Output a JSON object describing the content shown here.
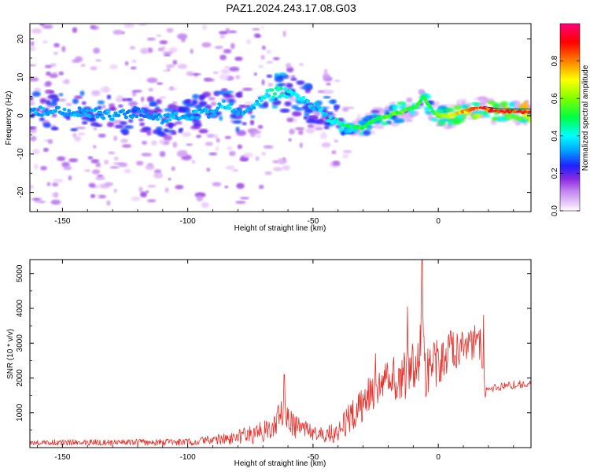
{
  "figure": {
    "title": "PAZ1.2024.243.17.08.G03"
  },
  "chart_data": [
    {
      "type": "heatmap",
      "name": "spectrogram",
      "xlabel": "Height of straight line (km)",
      "ylabel": "Frequency (Hz)",
      "xlim": [
        -163,
        37
      ],
      "ylim": [
        -25,
        24
      ],
      "xticks": [
        -150,
        -100,
        -50,
        0
      ],
      "yticks": [
        -20,
        -10,
        0,
        10,
        20
      ],
      "colorbar": {
        "label": "Normalized spectral amplitude",
        "range": [
          0,
          1
        ],
        "ticks": [
          0.0,
          0.2,
          0.4,
          0.6,
          0.8
        ]
      },
      "ridge_frequency": {
        "x": [
          -163,
          -150,
          -140,
          -130,
          -120,
          -110,
          -100,
          -90,
          -85,
          -80,
          -75,
          -70,
          -65,
          -60,
          -55,
          -50,
          -45,
          -40,
          -35,
          -30,
          -25,
          -20,
          -15,
          -10,
          -8,
          -6,
          -4,
          -2,
          0,
          5,
          10,
          15,
          20,
          25,
          30,
          37
        ],
        "freq": [
          1,
          1.5,
          1,
          0,
          1,
          -1,
          0,
          1,
          3,
          1,
          2,
          5,
          6,
          6,
          4,
          3,
          0,
          -2,
          -3,
          -3,
          -1,
          0,
          1,
          2,
          3,
          5,
          3,
          1,
          0,
          0,
          1,
          2,
          1.5,
          1,
          1,
          1
        ],
        "amplitude": [
          0.35,
          0.35,
          0.35,
          0.35,
          0.3,
          0.35,
          0.35,
          0.35,
          0.4,
          0.35,
          0.35,
          0.4,
          0.45,
          0.45,
          0.4,
          0.35,
          0.4,
          0.45,
          0.5,
          0.55,
          0.5,
          0.55,
          0.6,
          0.55,
          0.55,
          0.55,
          0.55,
          0.5,
          0.6,
          0.7,
          0.8,
          0.85,
          0.9,
          0.92,
          0.92,
          0.92
        ]
      }
    },
    {
      "type": "line",
      "name": "snr",
      "xlabel": "Height of straight line (km)",
      "ylabel": "SNR (10 * v/v)",
      "xlim": [
        -163,
        37
      ],
      "ylim": [
        0,
        5400
      ],
      "xticks": [
        -150,
        -100,
        -50,
        0
      ],
      "yticks": [
        1000,
        2000,
        3000,
        4000,
        5000
      ],
      "color": "#e8302a",
      "envelope": {
        "x": [
          -163,
          -150,
          -120,
          -100,
          -90,
          -80,
          -75,
          -70,
          -66,
          -64,
          -62,
          -60,
          -58,
          -55,
          -52,
          -50,
          -48,
          -45,
          -42,
          -40,
          -38,
          -35,
          -32,
          -30,
          -28,
          -25,
          -22,
          -20,
          -18,
          -15,
          -13,
          -12,
          -11,
          -10,
          -8,
          -7,
          -6.5,
          -6,
          -5,
          -4,
          -2,
          0,
          2,
          4,
          6,
          8,
          10,
          12,
          14,
          17,
          18,
          19,
          20,
          25,
          30,
          37
        ],
        "y": [
          150,
          150,
          150,
          160,
          220,
          300,
          380,
          450,
          650,
          850,
          1000,
          900,
          700,
          500,
          450,
          420,
          450,
          400,
          420,
          500,
          650,
          900,
          1050,
          1300,
          1500,
          1700,
          1800,
          1900,
          2000,
          2000,
          2100,
          2200,
          2600,
          2000,
          2400,
          3000,
          5000,
          2500,
          2000,
          2300,
          2400,
          2500,
          2600,
          2700,
          2700,
          2800,
          2900,
          3000,
          3000,
          3100,
          1450,
          1600,
          1700,
          1750,
          1800,
          1850
        ]
      },
      "noise": [
        [
          -163,
          80
        ],
        [
          -100,
          100
        ],
        [
          -80,
          200
        ],
        [
          -65,
          420
        ],
        [
          -58,
          380
        ],
        [
          -50,
          230
        ],
        [
          -45,
          260
        ],
        [
          -38,
          380
        ],
        [
          -32,
          500
        ],
        [
          -25,
          600
        ],
        [
          -15,
          650
        ],
        [
          -10,
          800
        ],
        [
          -5,
          750
        ],
        [
          0,
          700
        ],
        [
          10,
          550
        ],
        [
          17,
          550
        ],
        [
          18,
          120
        ],
        [
          37,
          120
        ]
      ],
      "spikes": [
        {
          "x": -61.5,
          "y": 2100
        },
        {
          "x": -25,
          "y": 2700
        },
        {
          "x": -12.3,
          "y": 4050
        },
        {
          "x": -6.5,
          "y": 5400
        },
        {
          "x": -5.8,
          "y": 3200
        },
        {
          "x": 18,
          "y": 3800
        },
        {
          "x": 5,
          "y": 3350
        }
      ]
    }
  ]
}
